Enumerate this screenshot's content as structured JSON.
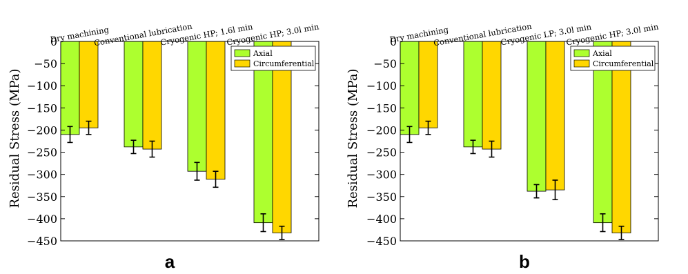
{
  "chart_data": [
    {
      "type": "bar",
      "panel_label": "a",
      "ylabel": "Residual Stress (MPa)",
      "ylim": [
        -450,
        0
      ],
      "yticks": [
        0,
        -50,
        -100,
        -150,
        -200,
        -250,
        -300,
        -350,
        -400,
        -450
      ],
      "categories": [
        "Dry machining",
        "Conventional lubrication",
        "Cryogenic HP; 1.6l min",
        "Cryogenic HP; 3.0l min"
      ],
      "legend_position": "top-right",
      "grid": false,
      "series": [
        {
          "name": "Axial",
          "color": "#adff2f",
          "values": [
            -210,
            -238,
            -293,
            -409
          ],
          "errors": [
            18,
            15,
            20,
            20
          ]
        },
        {
          "name": "Circumferential",
          "color": "#ffd700",
          "values": [
            -195,
            -243,
            -311,
            -432
          ],
          "errors": [
            15,
            18,
            18,
            15
          ]
        }
      ]
    },
    {
      "type": "bar",
      "panel_label": "b",
      "ylabel": "Residual Stress (MPa)",
      "ylim": [
        -450,
        0
      ],
      "yticks": [
        0,
        -50,
        -100,
        -150,
        -200,
        -250,
        -300,
        -350,
        -400,
        -450
      ],
      "categories": [
        "Dry machining",
        "Conventional lubrication",
        "Cryogenic LP; 3.0l min",
        "Cryogenic HP; 3.0l min"
      ],
      "legend_position": "top-right",
      "grid": false,
      "series": [
        {
          "name": "Axial",
          "color": "#adff2f",
          "values": [
            -210,
            -238,
            -338,
            -409
          ],
          "errors": [
            18,
            15,
            15,
            20
          ]
        },
        {
          "name": "Circumferential",
          "color": "#ffd700",
          "values": [
            -195,
            -243,
            -335,
            -432
          ],
          "errors": [
            15,
            18,
            22,
            15
          ]
        }
      ]
    }
  ]
}
